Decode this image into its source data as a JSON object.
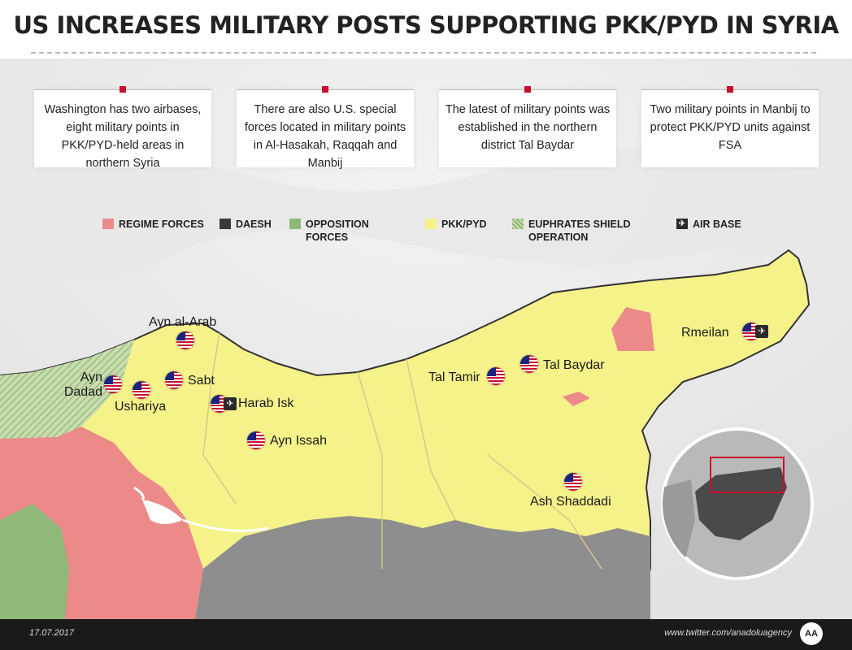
{
  "title": "US INCREASES MILITARY POSTS SUPPORTING PKK/PYD IN SYRIA",
  "info_boxes": [
    "Washington has two airbases, eight military points in PKK/PYD-held areas in northern Syria",
    "There are also U.S. special forces located in military points in Al-Hasakah, Raqqah and Manbij",
    "The latest of military points was established in the northern district Tal Baydar",
    "Two military points in Manbij to protect PKK/PYD units against FSA"
  ],
  "legend": [
    {
      "label": "REGIME FORCES",
      "color": "#ec8a8a"
    },
    {
      "label": "DAESH",
      "color": "#3a3a3a"
    },
    {
      "label": "OPPOSITION FORCES",
      "color": "#8fb879"
    },
    {
      "label": "PKK/PYD",
      "color": "#f5f28a"
    },
    {
      "label": "EUPHRATES SHIELD OPERATION",
      "color": "hatched-green"
    },
    {
      "label": "AIR BASE",
      "icon": "airplane-icon"
    }
  ],
  "places": {
    "ayn_al_arab": "Ayn al-Arab",
    "ayn_dadad": "Ayn Dadad",
    "ushariya": "Ushariya",
    "sabt": "Sabt",
    "harab_isk": "Harab Isk",
    "ayn_issah": "Ayn Issah",
    "tal_tamir": "Tal Tamir",
    "tal_baydar": "Tal Baydar",
    "rmeilan": "Rmeilan",
    "ash_shaddadi": "Ash Shaddadi"
  },
  "footer": {
    "date": "17.07.2017",
    "twitter": "www.twitter.com/anadoluagency",
    "logo": "AA"
  }
}
